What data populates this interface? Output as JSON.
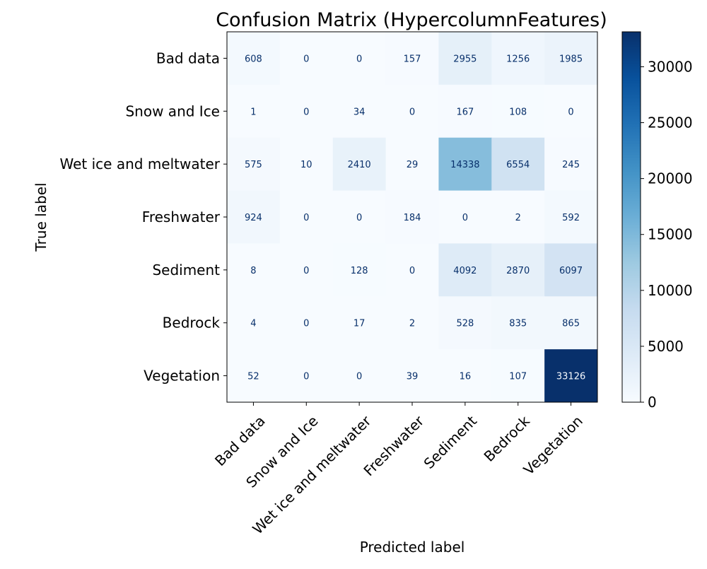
{
  "chart_data": {
    "type": "heatmap",
    "title": "Confusion Matrix (HypercolumnFeatures)",
    "xlabel": "Predicted label",
    "ylabel": "True label",
    "row_labels": [
      "Bad data",
      "Snow and Ice",
      "Wet ice and meltwater",
      "Freshwater",
      "Sediment",
      "Bedrock",
      "Vegetation"
    ],
    "col_labels": [
      "Bad data",
      "Snow and Ice",
      "Wet ice and meltwater",
      "Freshwater",
      "Sediment",
      "Bedrock",
      "Vegetation"
    ],
    "values": [
      [
        608,
        0,
        0,
        157,
        2955,
        1256,
        1985
      ],
      [
        1,
        0,
        34,
        0,
        167,
        108,
        0
      ],
      [
        575,
        10,
        2410,
        29,
        14338,
        6554,
        245
      ],
      [
        924,
        0,
        0,
        184,
        0,
        2,
        592
      ],
      [
        8,
        0,
        128,
        0,
        4092,
        2870,
        6097
      ],
      [
        4,
        0,
        17,
        2,
        528,
        835,
        865
      ],
      [
        52,
        0,
        0,
        39,
        16,
        107,
        33126
      ]
    ],
    "colormap": "Blues",
    "colorbar": {
      "min": 0,
      "max": 33126,
      "ticks": [
        0,
        5000,
        10000,
        15000,
        20000,
        25000,
        30000
      ]
    },
    "grid": false,
    "legend": "colorbar right"
  }
}
